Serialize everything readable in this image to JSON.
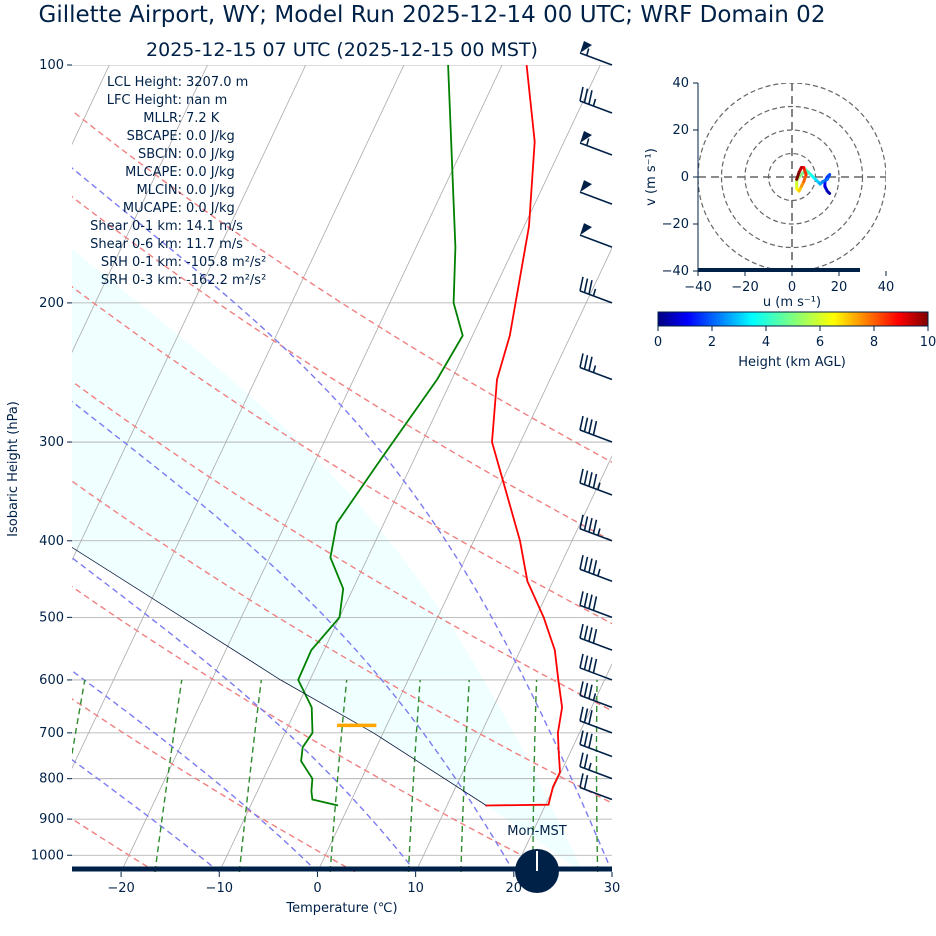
{
  "title_line1": "Gillette  Airport, WY; Model Run 2025-12-14 00 UTC; WRF Domain 02",
  "title_line2": "2025-12-15 07 UTC  (2025-12-15 00 MST)",
  "skewt": {
    "xlabel": "Temperature (℃)",
    "ylabel": "Isobaric Height (hPa)",
    "xticks": [
      -20,
      -10,
      0,
      10,
      20,
      30
    ],
    "xtick_labels": [
      "−20",
      "−10",
      "0",
      "10",
      "20",
      "30"
    ],
    "pticks": [
      100,
      200,
      300,
      400,
      500,
      600,
      700,
      800,
      900,
      1000
    ],
    "xlim": [
      -25,
      30
    ],
    "plim": [
      1050,
      100
    ],
    "clock_label": "Mon-MST"
  },
  "indices": [
    {
      "label": "LCL Height:",
      "value": "3207.0 m"
    },
    {
      "label": "LFC Height:",
      "value": "nan m"
    },
    {
      "label": "MLLR:",
      "value": "7.2 K"
    },
    {
      "label": "SBCAPE:",
      "value": "0.0 J/kg"
    },
    {
      "label": "SBCIN:",
      "value": "0.0 J/kg"
    },
    {
      "label": "MLCAPE:",
      "value": "0.0 J/kg"
    },
    {
      "label": "MLCIN:",
      "value": "0.0 J/kg"
    },
    {
      "label": "MUCAPE:",
      "value": "0.0 J/kg"
    },
    {
      "label": "Shear 0-1 km:",
      "value": "14.1 m/s"
    },
    {
      "label": "Shear 0-6 km:",
      "value": "11.7 m/s"
    },
    {
      "label": "SRH 0-1 km:",
      "value": "-105.8 m²/s²"
    },
    {
      "label": "SRH 0-3 km:",
      "value": "-162.2 m²/s²"
    }
  ],
  "hodograph": {
    "xlabel": "u (m s⁻¹)",
    "ylabel": "v (m s⁻¹)",
    "ticks": [
      -40,
      -20,
      0,
      20,
      40
    ],
    "tick_labels": [
      "−40",
      "−20",
      "0",
      "20",
      "40"
    ],
    "colorbar_label": "Height (km AGL)",
    "colorbar_ticks": [
      0,
      2,
      4,
      6,
      8,
      10
    ]
  },
  "chart_data": [
    {
      "type": "line",
      "subtype": "skew-T log-p",
      "xlabel": "Temperature (℃)",
      "ylabel": "Isobaric Height (hPa)",
      "xlim": [
        -25,
        30
      ],
      "ylim": [
        1050,
        100
      ],
      "log_y": true,
      "skew_deg_per_decade": 38,
      "series": [
        {
          "name": "",
          "color": "#ff0000",
          "p": [
            865,
            863,
            820,
            785,
            740,
            700,
            650,
            600,
            550,
            500,
            450,
            400,
            300,
            250,
            220,
            160,
            125,
            100
          ],
          "values": [
            13.9,
            20.3,
            19.9,
            19.9,
            18.8,
            17.8,
            17.0,
            15.3,
            13.5,
            10.8,
            7.4,
            4.7,
            -2.9,
            -5.4,
            -6.2,
            -9.5,
            -13.0,
            -17.5
          ]
        },
        {
          "name": "",
          "color": "#008000",
          "p": [
            865,
            850,
            830,
            800,
            760,
            730,
            700,
            650,
            600,
            550,
            500,
            460,
            420,
            380,
            320,
            250,
            220,
            200,
            170,
            100
          ],
          "values": [
            -1.1,
            -4.0,
            -4.5,
            -5.0,
            -7.0,
            -7.5,
            -7.2,
            -8.5,
            -11.2,
            -11.3,
            -10.0,
            -11.0,
            -13.8,
            -14.8,
            -13.5,
            -11.5,
            -11.0,
            -13.5,
            -16.0,
            -25.5
          ]
        },
        {
          "name": "",
          "color": "#0d1b3e",
          "p": [
            865,
            700,
            600,
            500,
            400,
            300,
            250,
            200
          ],
          "values": [
            14.0,
            -1.0,
            -13.0,
            -26.0,
            -42.0,
            -64.0,
            -78.0,
            -95.0
          ]
        }
      ],
      "lcl_marker": {
        "p": 685,
        "t": [
          2.0,
          6.0
        ],
        "color": "#ffa500"
      },
      "dry_adiabats_theta_C": [
        -20,
        0,
        20,
        40,
        60,
        80,
        100,
        120
      ],
      "moist_adiabats_C": [
        -10,
        0,
        10,
        20,
        30
      ],
      "mixing_ratios_gkg": [
        0.4,
        1,
        2,
        4,
        7,
        10,
        16,
        24
      ],
      "wind_barbs": [
        {
          "p": 850,
          "speed_kt": 20
        },
        {
          "p": 800,
          "speed_kt": 25
        },
        {
          "p": 750,
          "speed_kt": 30
        },
        {
          "p": 700,
          "speed_kt": 30
        },
        {
          "p": 650,
          "speed_kt": 35
        },
        {
          "p": 600,
          "speed_kt": 40
        },
        {
          "p": 550,
          "speed_kt": 40
        },
        {
          "p": 500,
          "speed_kt": 40
        },
        {
          "p": 450,
          "speed_kt": 45
        },
        {
          "p": 400,
          "speed_kt": 45
        },
        {
          "p": 350,
          "speed_kt": 45
        },
        {
          "p": 300,
          "speed_kt": 40
        },
        {
          "p": 250,
          "speed_kt": 35
        },
        {
          "p": 200,
          "speed_kt": 35
        },
        {
          "p": 170,
          "speed_kt": 50
        },
        {
          "p": 150,
          "speed_kt": 50
        },
        {
          "p": 130,
          "speed_kt": 55
        },
        {
          "p": 115,
          "speed_kt": 35
        },
        {
          "p": 100,
          "speed_kt": 55
        }
      ]
    },
    {
      "type": "line",
      "subtype": "hodograph",
      "xlabel": "u (m s⁻¹)",
      "ylabel": "v (m s⁻¹)",
      "xlim": [
        -40,
        40
      ],
      "ylim": [
        -40,
        40
      ],
      "rings": [
        10,
        20,
        30,
        40
      ],
      "colormap": "jet",
      "colorbar_range_km": [
        0,
        10
      ],
      "u": [
        16,
        15,
        14,
        14,
        15,
        16,
        15,
        13,
        12,
        11,
        10,
        9,
        8,
        7,
        6,
        5,
        4,
        3,
        2,
        2,
        2,
        3,
        4,
        5,
        6,
        5,
        4,
        3,
        2
      ],
      "v": [
        -7,
        -6,
        -4,
        -2,
        0,
        1,
        -1,
        -2,
        -3,
        -2,
        -1,
        0,
        1,
        2,
        3,
        2,
        1,
        0,
        -1,
        -3,
        -5,
        -6,
        -4,
        -2,
        1,
        4,
        4,
        2,
        -1
      ],
      "height_km": [
        0.1,
        0.3,
        0.6,
        0.9,
        1.2,
        1.5,
        1.8,
        2.1,
        2.4,
        2.7,
        3.0,
        3.3,
        3.6,
        3.9,
        4.2,
        4.5,
        4.8,
        5.1,
        5.4,
        5.7,
        6.0,
        6.5,
        7.0,
        7.5,
        8.0,
        8.5,
        9.0,
        9.5,
        10.0
      ]
    }
  ]
}
